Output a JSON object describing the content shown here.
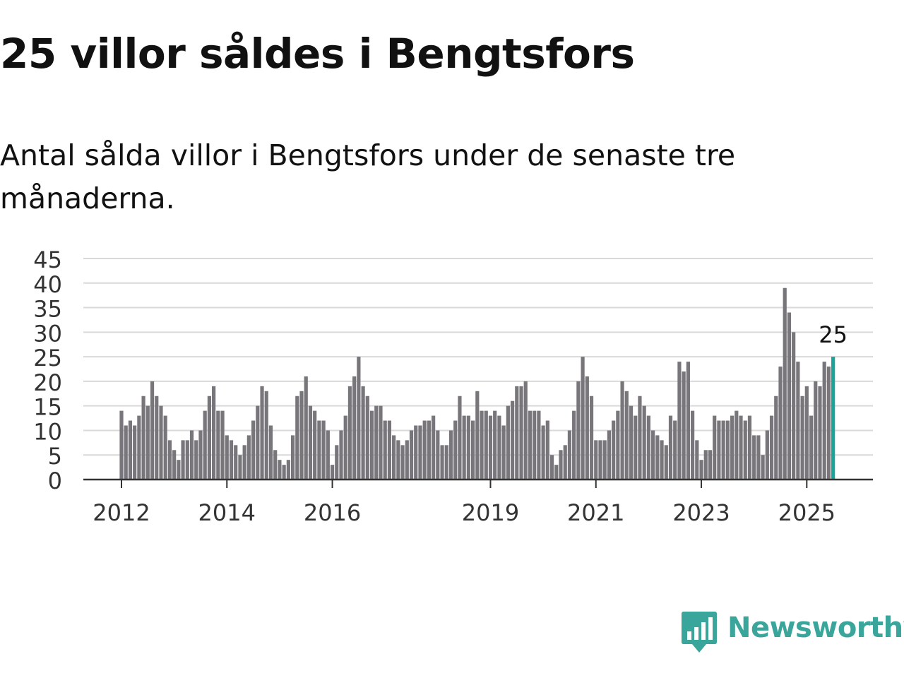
{
  "title": "25 villor såldes i Bengtsfors",
  "subtitle": "Antal sålda villor i Bengtsfors under de senaste tre månaderna.",
  "brand": {
    "name": "Newsworthy",
    "color": "#3aa59a",
    "icon": "newsworthy-logo-icon"
  },
  "chart_data": {
    "type": "bar",
    "title": "25 villor såldes i Bengtsfors",
    "ylim": [
      0,
      45
    ],
    "y_ticks": [
      0,
      5,
      10,
      15,
      20,
      25,
      30,
      35,
      40,
      45
    ],
    "x_tick_labels": [
      {
        "label": "2012",
        "index": 0
      },
      {
        "label": "2014",
        "index": 24
      },
      {
        "label": "2016",
        "index": 48
      },
      {
        "label": "2019",
        "index": 84
      },
      {
        "label": "2021",
        "index": 108
      },
      {
        "label": "2023",
        "index": 132
      },
      {
        "label": "2025",
        "index": 156
      }
    ],
    "bar_color": "#78767b",
    "highlight_color": "#1aa398",
    "highlight_last": true,
    "highlight_label": "25",
    "grid": true,
    "values": [
      14,
      11,
      12,
      11,
      13,
      17,
      15,
      20,
      17,
      15,
      13,
      8,
      6,
      4,
      8,
      8,
      10,
      8,
      10,
      14,
      17,
      19,
      14,
      14,
      9,
      8,
      7,
      5,
      7,
      9,
      12,
      15,
      19,
      18,
      11,
      6,
      4,
      3,
      4,
      9,
      17,
      18,
      21,
      15,
      14,
      12,
      12,
      10,
      3,
      7,
      10,
      13,
      19,
      21,
      25,
      19,
      17,
      14,
      15,
      15,
      12,
      12,
      9,
      8,
      7,
      8,
      10,
      11,
      11,
      12,
      12,
      13,
      10,
      7,
      7,
      10,
      12,
      17,
      13,
      13,
      12,
      18,
      14,
      14,
      13,
      14,
      13,
      11,
      15,
      16,
      19,
      19,
      20,
      14,
      14,
      14,
      11,
      12,
      5,
      3,
      6,
      7,
      10,
      14,
      20,
      25,
      21,
      17,
      8,
      8,
      8,
      10,
      12,
      14,
      20,
      18,
      15,
      13,
      17,
      15,
      13,
      10,
      9,
      8,
      7,
      13,
      12,
      24,
      22,
      24,
      14,
      8,
      4,
      6,
      6,
      13,
      12,
      12,
      12,
      13,
      14,
      13,
      12,
      13,
      9,
      9,
      5,
      10,
      13,
      17,
      23,
      39,
      34,
      30,
      24,
      17,
      19,
      13,
      20,
      19,
      24,
      23,
      25
    ]
  }
}
